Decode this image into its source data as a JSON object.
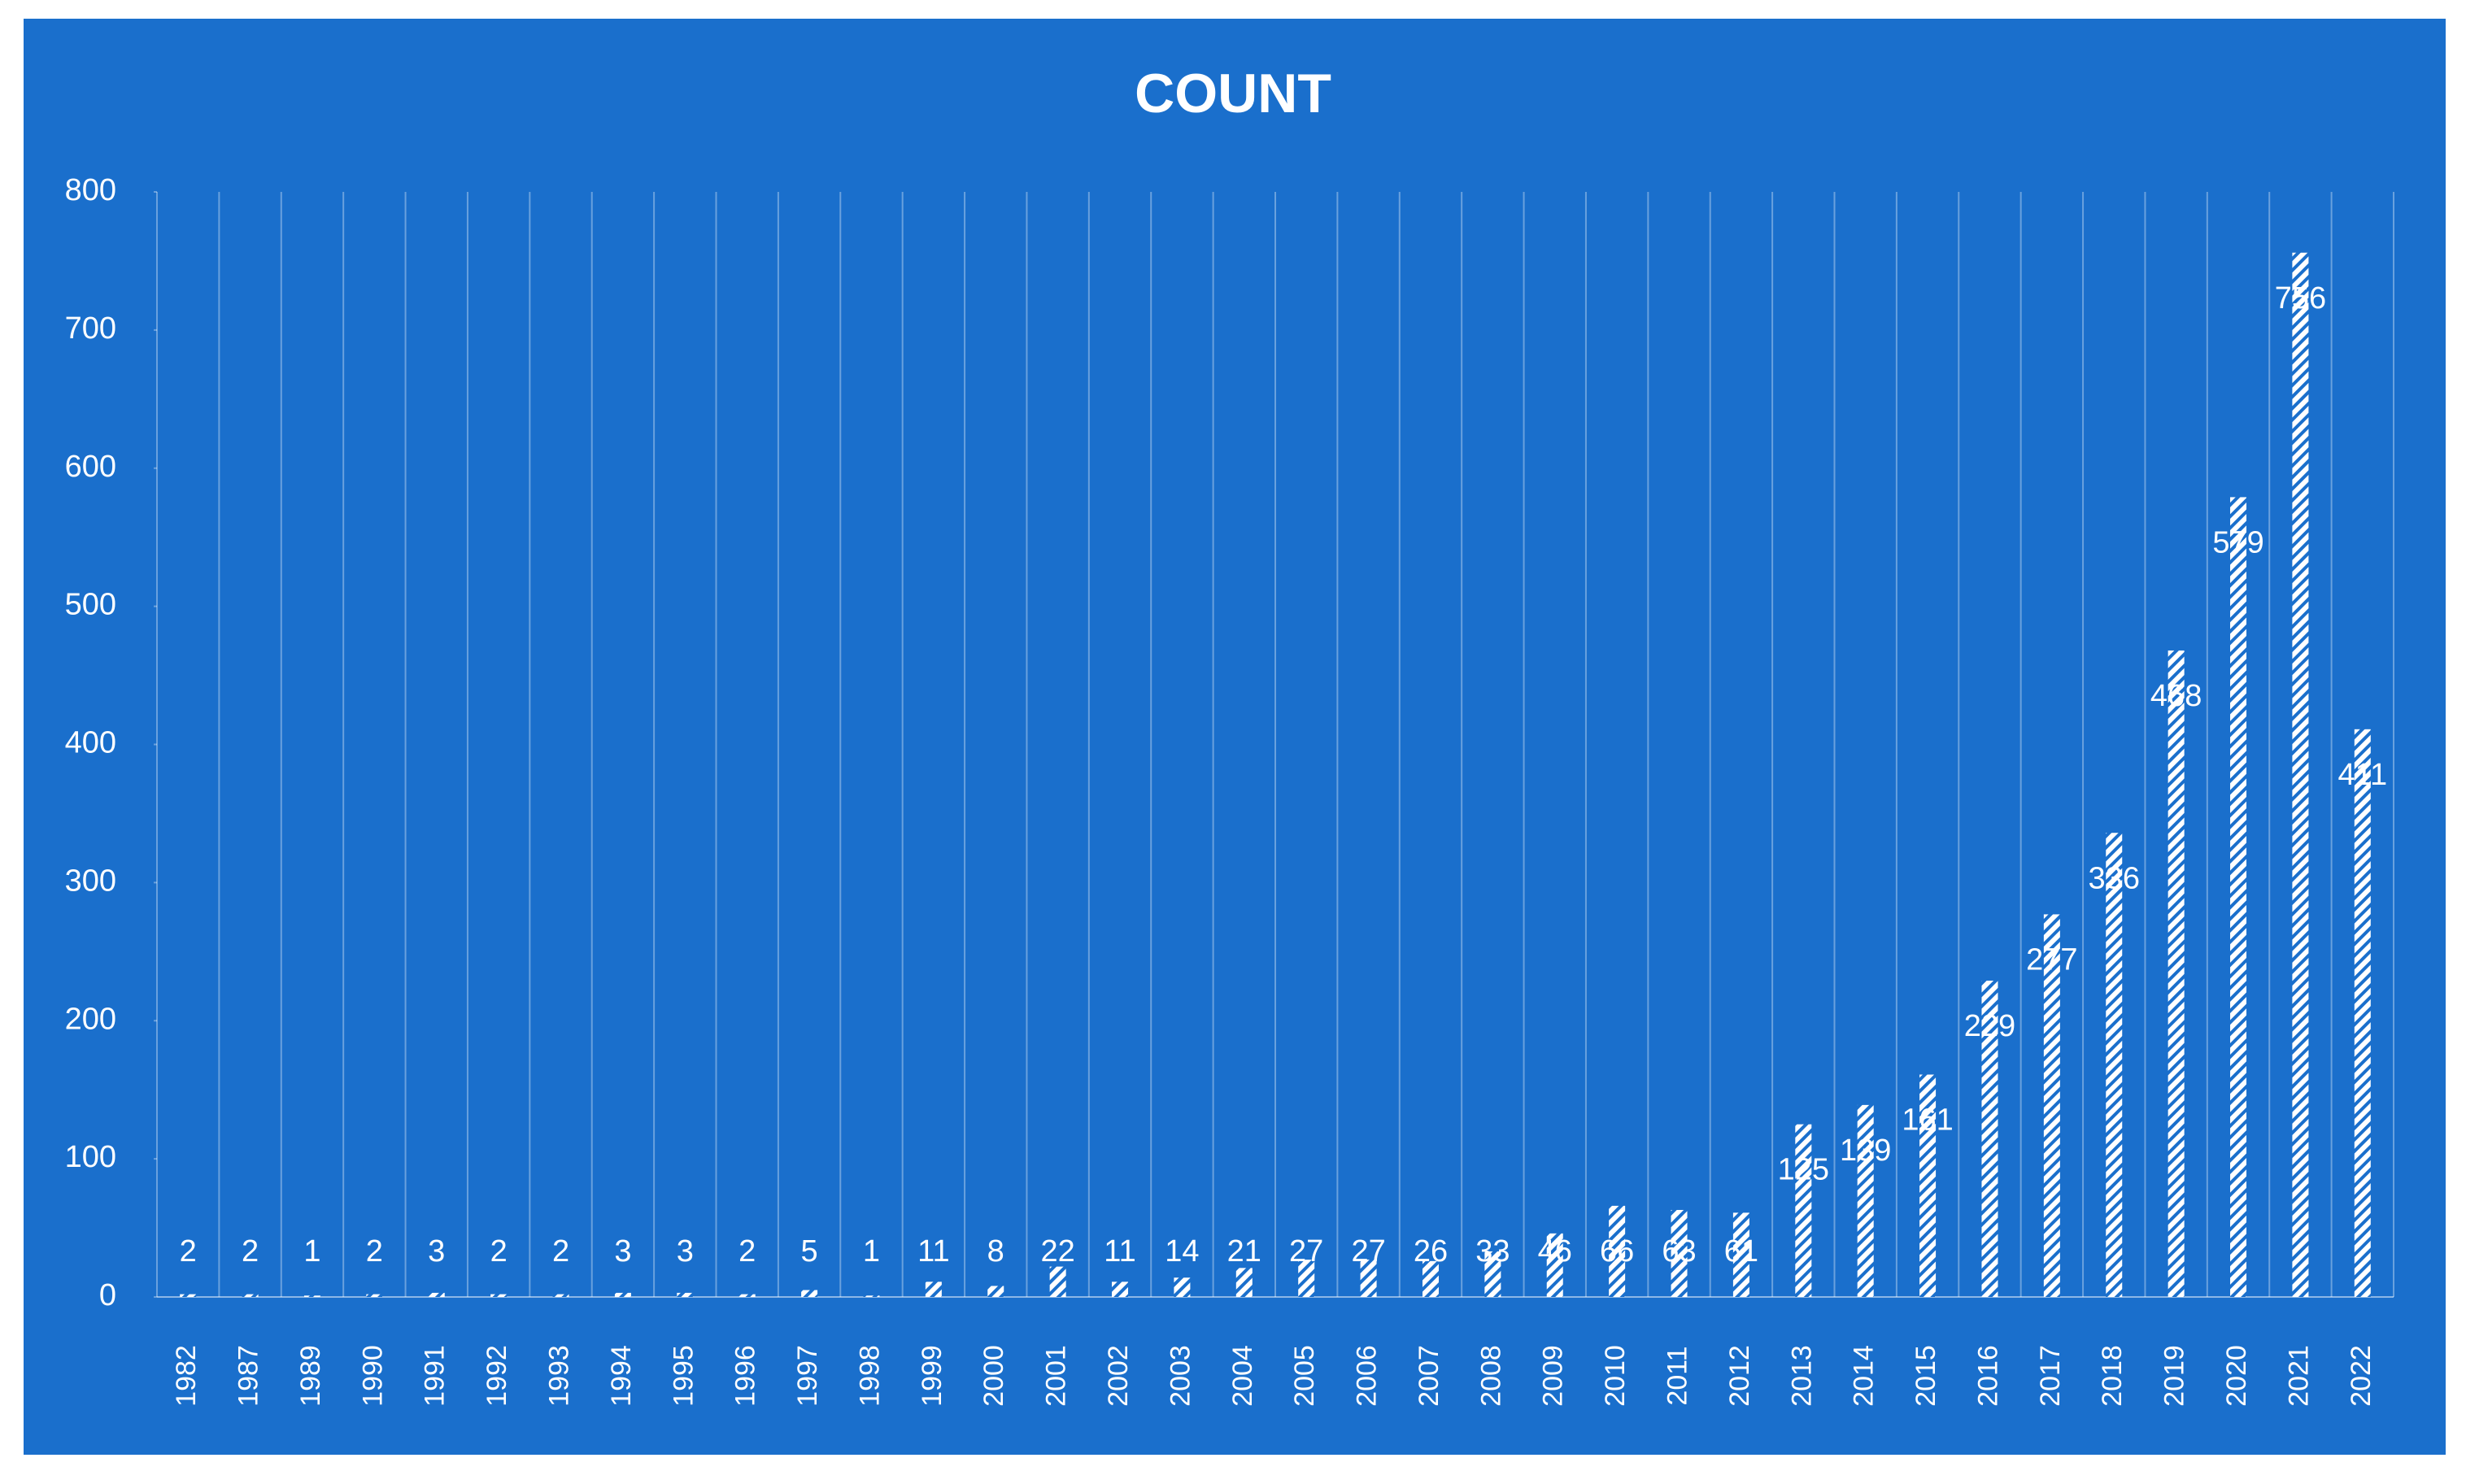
{
  "chart_data": {
    "type": "bar",
    "title": "COUNT",
    "categories": [
      "1982",
      "1987",
      "1989",
      "1990",
      "1991",
      "1992",
      "1993",
      "1994",
      "1995",
      "1996",
      "1997",
      "1998",
      "1999",
      "2000",
      "2001",
      "2002",
      "2003",
      "2004",
      "2005",
      "2006",
      "2007",
      "2008",
      "2009",
      "2010",
      "2011",
      "2012",
      "2013",
      "2014",
      "2015",
      "2016",
      "2017",
      "2018",
      "2019",
      "2020",
      "2021",
      "2022"
    ],
    "values": [
      2,
      2,
      1,
      2,
      3,
      2,
      2,
      3,
      3,
      2,
      5,
      1,
      11,
      8,
      22,
      11,
      14,
      21,
      27,
      27,
      26,
      33,
      46,
      66,
      63,
      61,
      125,
      139,
      161,
      229,
      277,
      336,
      468,
      579,
      756,
      411
    ],
    "color": "#ffffff",
    "ylim": [
      0,
      800
    ],
    "yticks": [
      0,
      100,
      200,
      300,
      400,
      500,
      600,
      700,
      800
    ]
  }
}
